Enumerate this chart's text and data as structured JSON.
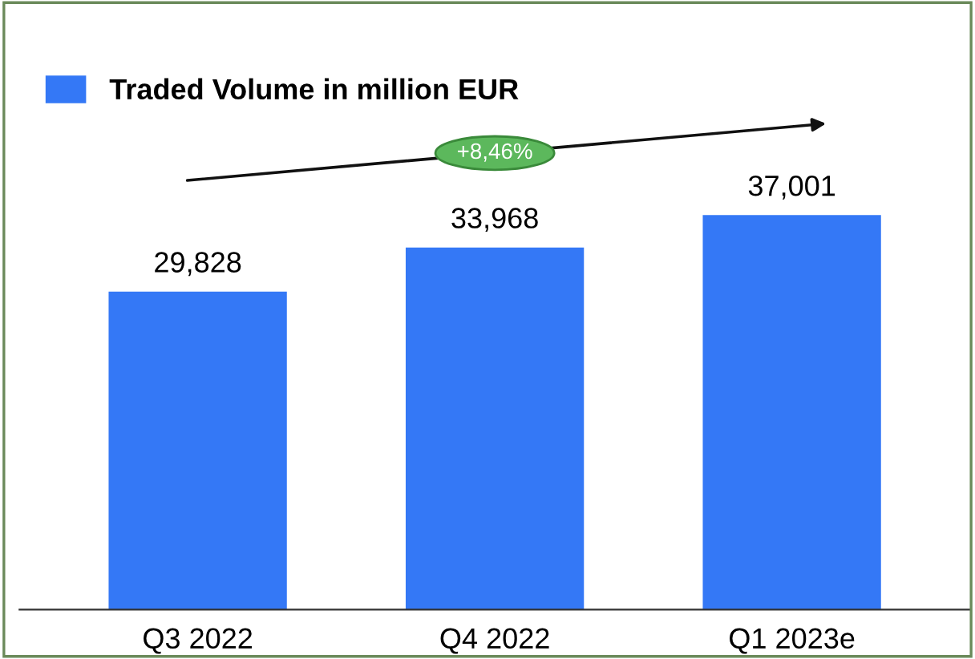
{
  "chart_data": {
    "type": "bar",
    "categories": [
      "Q3 2022",
      "Q4 2022",
      "Q1 2023e"
    ],
    "series": [
      {
        "name": "Traded Volume in million EUR",
        "color": "#3478f6",
        "values": [
          29828,
          33968,
          37001
        ],
        "value_labels": [
          "29,828",
          "33,968",
          "37,001"
        ]
      }
    ],
    "annotations": [
      "+8,46%"
    ],
    "legend": "top left",
    "grid": false,
    "tick_labels": "x"
  }
}
